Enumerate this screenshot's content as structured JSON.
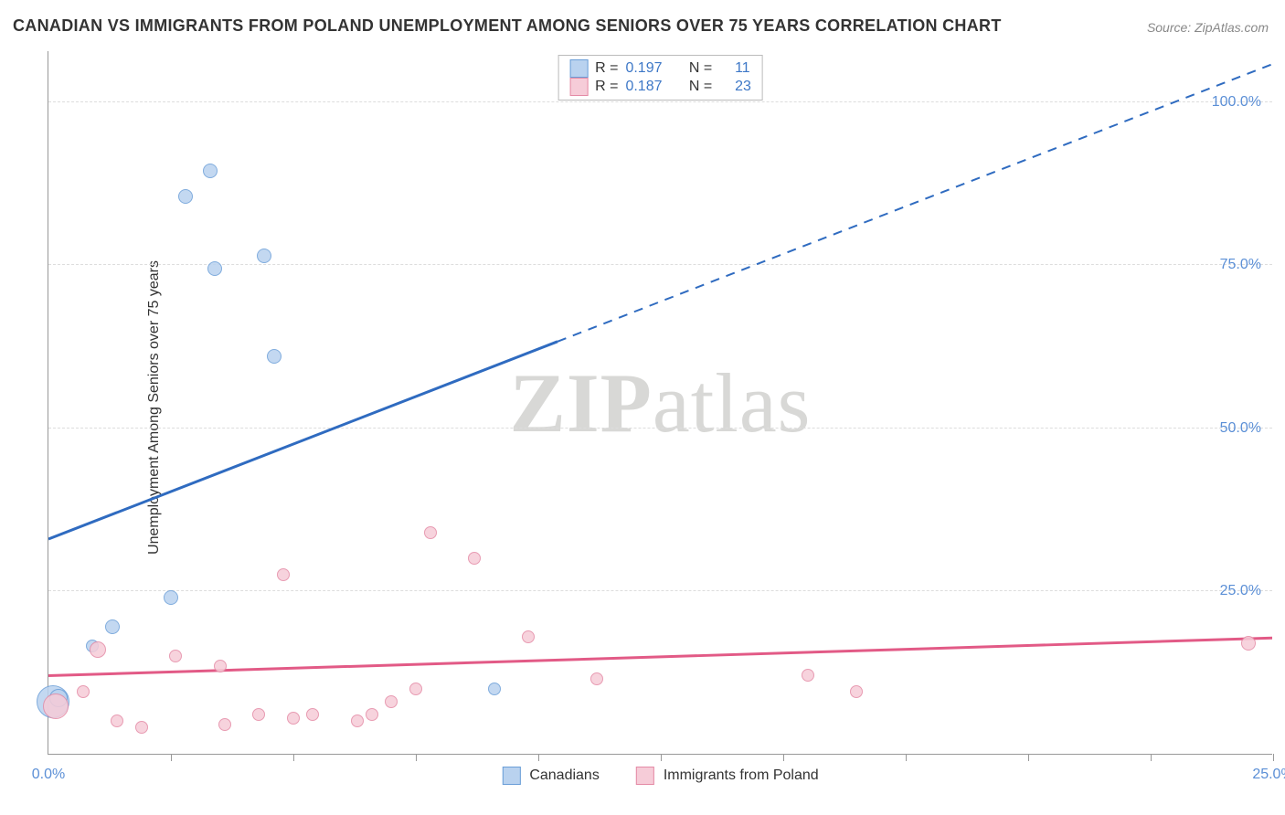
{
  "title": "CANADIAN VS IMMIGRANTS FROM POLAND UNEMPLOYMENT AMONG SENIORS OVER 75 YEARS CORRELATION CHART",
  "source": "Source: ZipAtlas.com",
  "y_axis_label": "Unemployment Among Seniors over 75 years",
  "watermark": {
    "bold": "ZIP",
    "light": "atlas"
  },
  "chart": {
    "type": "scatter",
    "xlim": [
      0,
      25
    ],
    "ylim": [
      0,
      108
    ],
    "x_ticks_minor": [
      2.5,
      5,
      7.5,
      10,
      12.5,
      15,
      17.5,
      20,
      22.5,
      25
    ],
    "x_tick_labels": [
      {
        "val": 0,
        "label": "0.0%"
      },
      {
        "val": 25,
        "label": "25.0%"
      }
    ],
    "y_tick_labels": [
      {
        "val": 25,
        "label": "25.0%"
      },
      {
        "val": 50,
        "label": "50.0%"
      },
      {
        "val": 75,
        "label": "75.0%"
      },
      {
        "val": 100,
        "label": "100.0%"
      }
    ],
    "grid_color": "#dddddd",
    "background_color": "#ffffff",
    "series": [
      {
        "name": "Canadians",
        "fill": "#b9d2ef",
        "stroke": "#6a9ed8",
        "trend_color": "#2f6bc0",
        "trend": {
          "y_at_xmin": 33,
          "y_at_xmax": 106,
          "solid_until_x": 10.4
        },
        "R": "0.197",
        "N": "11",
        "points": [
          {
            "x": 0.1,
            "y": 8.0,
            "r": 18
          },
          {
            "x": 0.2,
            "y": 8.5,
            "r": 10
          },
          {
            "x": 0.9,
            "y": 16.5,
            "r": 7
          },
          {
            "x": 1.3,
            "y": 19.5,
            "r": 8
          },
          {
            "x": 2.5,
            "y": 24.0,
            "r": 8
          },
          {
            "x": 2.8,
            "y": 85.5,
            "r": 8
          },
          {
            "x": 3.3,
            "y": 89.5,
            "r": 8
          },
          {
            "x": 3.4,
            "y": 74.5,
            "r": 8
          },
          {
            "x": 4.4,
            "y": 76.5,
            "r": 8
          },
          {
            "x": 4.6,
            "y": 61.0,
            "r": 8
          },
          {
            "x": 9.1,
            "y": 10.0,
            "r": 7
          }
        ]
      },
      {
        "name": "Immigrants from Poland",
        "fill": "#f6ccd8",
        "stroke": "#e48aa5",
        "trend_color": "#e25a86",
        "trend": {
          "y_at_xmin": 12.0,
          "y_at_xmax": 17.8,
          "solid_until_x": 25
        },
        "R": "0.187",
        "N": "23",
        "points": [
          {
            "x": 0.15,
            "y": 7.3,
            "r": 14
          },
          {
            "x": 0.7,
            "y": 9.5,
            "r": 7
          },
          {
            "x": 1.0,
            "y": 16.0,
            "r": 9
          },
          {
            "x": 1.4,
            "y": 5.0,
            "r": 7
          },
          {
            "x": 1.9,
            "y": 4.0,
            "r": 7
          },
          {
            "x": 2.6,
            "y": 15.0,
            "r": 7
          },
          {
            "x": 3.5,
            "y": 13.5,
            "r": 7
          },
          {
            "x": 3.6,
            "y": 4.5,
            "r": 7
          },
          {
            "x": 4.3,
            "y": 6.0,
            "r": 7
          },
          {
            "x": 4.8,
            "y": 27.5,
            "r": 7
          },
          {
            "x": 5.0,
            "y": 5.5,
            "r": 7
          },
          {
            "x": 5.4,
            "y": 6.0,
            "r": 7
          },
          {
            "x": 6.3,
            "y": 5.0,
            "r": 7
          },
          {
            "x": 6.6,
            "y": 6.0,
            "r": 7
          },
          {
            "x": 7.0,
            "y": 8.0,
            "r": 7
          },
          {
            "x": 7.5,
            "y": 10.0,
            "r": 7
          },
          {
            "x": 7.8,
            "y": 34.0,
            "r": 7
          },
          {
            "x": 8.7,
            "y": 30.0,
            "r": 7
          },
          {
            "x": 9.8,
            "y": 18.0,
            "r": 7
          },
          {
            "x": 11.2,
            "y": 11.5,
            "r": 7
          },
          {
            "x": 15.5,
            "y": 12.0,
            "r": 7
          },
          {
            "x": 16.5,
            "y": 9.5,
            "r": 7
          },
          {
            "x": 24.5,
            "y": 17.0,
            "r": 8
          }
        ]
      }
    ]
  },
  "legend": {
    "series1": "Canadians",
    "series2": "Immigrants from Poland"
  },
  "corr_box": {
    "r_label": "R =",
    "n_label": "N ="
  }
}
